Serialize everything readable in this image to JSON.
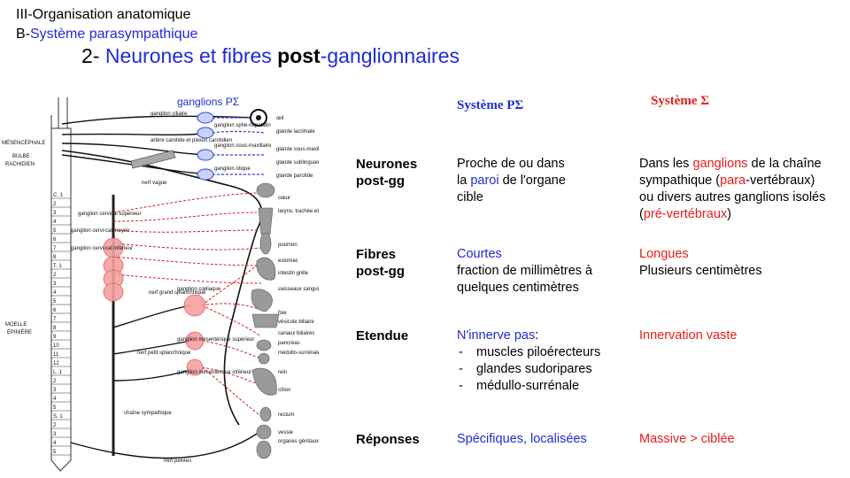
{
  "header": {
    "line1": "III-Organisation anatomique",
    "line2_prefix": "B-",
    "line2_blue": "Système parasympathique",
    "title_num": "2- ",
    "title_a": "Neurones et fibres ",
    "title_bold": "post",
    "title_b": "-ganglionnaires"
  },
  "diagram": {
    "ganglions_label": "ganglions PΣ",
    "left_labels": [
      "MÉSENCÉPHALE",
      "BULBE",
      "RACHIDIEN",
      "MOELLE",
      "ÉPINIÈRE"
    ],
    "vertebra_labels": [
      "C. 1",
      "2",
      "3",
      "4",
      "5",
      "6",
      "7",
      "8",
      "T. 1",
      "2",
      "3",
      "4",
      "5",
      "6",
      "7",
      "8",
      "9",
      "10",
      "11",
      "12",
      "L. 1",
      "2",
      "3",
      "4",
      "5",
      "S. 1",
      "2",
      "3",
      "4",
      "5"
    ],
    "nerve_labels": [
      "ganglion ciliaire",
      "artère carotide et plexus carotidien",
      "nerf vague",
      "ganglion cervical supérieur",
      "ganglion cervi-cal moyen",
      "ganglion cervi-cal inférieur",
      "nerf grand splanchnique",
      "nerf petit splanchnique",
      "ganglion cœliaque",
      "ganglion mésentérique supérieur",
      "ganglion mésentérique inférieur",
      "chaîne sympathique",
      "nerf pelvien",
      "ganglion sphé-nopalatin",
      "ganglion sous-maxillaire",
      "ganglion otique"
    ],
    "organ_labels": [
      "œil",
      "glande lacrimale",
      "glande sous-maxillaire",
      "glande sublinguale",
      "glande parotide",
      "cœur",
      "larynx, trachée et bronches",
      "poumon",
      "estomac",
      "intestin grêle",
      "vaisseaux sanguins abdominaux",
      "foie",
      "vésicule biliaire",
      "canaux biliaires",
      "pancréas",
      "médullo-surrénale",
      "rein",
      "côlon",
      "rectum",
      "vessie",
      "organes génitaux internes et externes"
    ]
  },
  "table": {
    "col_ps": "Système PΣ",
    "col_s": "Système Σ",
    "rows": {
      "neurones": {
        "label_1": "Neurones",
        "label_2": "post-gg",
        "ps_1": "Proche de ou dans",
        "ps_2a": "la ",
        "ps_2b": "paroi",
        "ps_2c": " de l'organe",
        "ps_3": "cible",
        "s_1a": "Dans les ",
        "s_1b": "ganglions",
        "s_1c": " de la chaîne",
        "s_2a": "sympathique (",
        "s_2b": "para",
        "s_2c": "-vertébraux)",
        "s_3": "ou divers autres ganglions isolés",
        "s_4a": "(",
        "s_4b": "pré-vertébraux",
        "s_4c": ")"
      },
      "fibres": {
        "label_1": "Fibres",
        "label_2": "post-gg",
        "ps_1": "Courtes",
        "ps_2": "fraction de millimètres à",
        "ps_3": "quelques centimètres",
        "s_1": "Longues",
        "s_2": "Plusieurs centimètres"
      },
      "etendue": {
        "label": "Etendue",
        "ps_1": "N'innerve pas",
        "ps_1b": ":",
        "ps_items": [
          "muscles piloérecteurs",
          "glandes sudoripares",
          "médullo-surrénale"
        ],
        "s_1": "Innervation vaste"
      },
      "reponses": {
        "label": "Réponses",
        "ps": "Spécifiques, localisées",
        "s": "Massive > ciblée"
      }
    }
  },
  "colors": {
    "blue": "#1f2bd6",
    "red": "#e81c1c",
    "nerve_red": "#d91e1e"
  }
}
